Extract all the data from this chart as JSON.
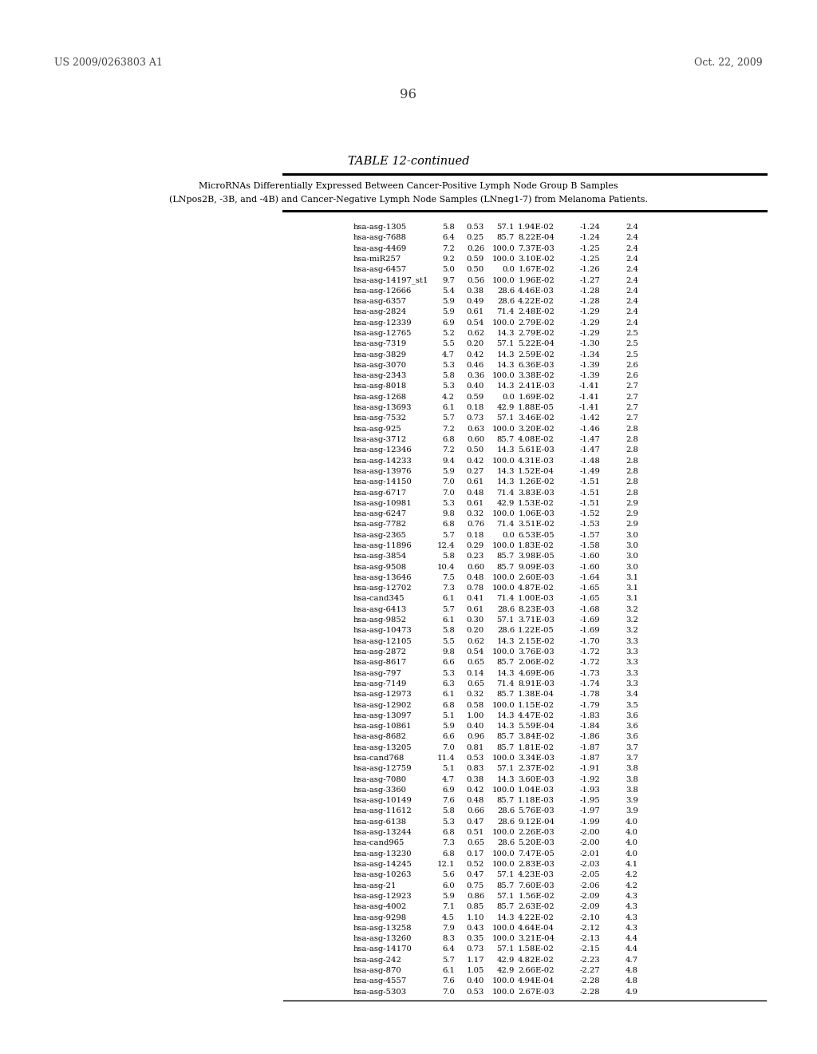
{
  "header_left": "US 2009/0263803 A1",
  "header_right": "Oct. 22, 2009",
  "page_number": "96",
  "table_title": "TABLE 12-continued",
  "subtitle_line1": "MicroRNAs Differentially Expressed Between Cancer-Positive Lymph Node Group B Samples",
  "subtitle_line2": "(LNpos2B, -3B, and -4B) and Cancer-Negative Lymph Node Samples (LNneg1-7) from Melanoma Patients.",
  "rows": [
    [
      "hsa-asg-1305",
      "5.8",
      "0.53",
      "57.1",
      "1.94E-02",
      "-1.24",
      "2.4"
    ],
    [
      "hsa-asg-7688",
      "6.4",
      "0.25",
      "85.7",
      "8.22E-04",
      "-1.24",
      "2.4"
    ],
    [
      "hsa-asg-4469",
      "7.2",
      "0.26",
      "100.0",
      "7.37E-03",
      "-1.25",
      "2.4"
    ],
    [
      "hsa-miR257",
      "9.2",
      "0.59",
      "100.0",
      "3.10E-02",
      "-1.25",
      "2.4"
    ],
    [
      "hsa-asg-6457",
      "5.0",
      "0.50",
      "0.0",
      "1.67E-02",
      "-1.26",
      "2.4"
    ],
    [
      "hsa-asg-14197_st1",
      "9.7",
      "0.56",
      "100.0",
      "1.96E-02",
      "-1.27",
      "2.4"
    ],
    [
      "hsa-asg-12666",
      "5.4",
      "0.38",
      "28.6",
      "4.46E-03",
      "-1.28",
      "2.4"
    ],
    [
      "hsa-asg-6357",
      "5.9",
      "0.49",
      "28.6",
      "4.22E-02",
      "-1.28",
      "2.4"
    ],
    [
      "hsa-asg-2824",
      "5.9",
      "0.61",
      "71.4",
      "2.48E-02",
      "-1.29",
      "2.4"
    ],
    [
      "hsa-asg-12339",
      "6.9",
      "0.54",
      "100.0",
      "2.79E-02",
      "-1.29",
      "2.4"
    ],
    [
      "hsa-asg-12765",
      "5.2",
      "0.62",
      "14.3",
      "2.79E-02",
      "-1.29",
      "2.5"
    ],
    [
      "hsa-asg-7319",
      "5.5",
      "0.20",
      "57.1",
      "5.22E-04",
      "-1.30",
      "2.5"
    ],
    [
      "hsa-asg-3829",
      "4.7",
      "0.42",
      "14.3",
      "2.59E-02",
      "-1.34",
      "2.5"
    ],
    [
      "hsa-asg-3070",
      "5.3",
      "0.46",
      "14.3",
      "6.36E-03",
      "-1.39",
      "2.6"
    ],
    [
      "hsa-asg-2343",
      "5.8",
      "0.36",
      "100.0",
      "3.38E-02",
      "-1.39",
      "2.6"
    ],
    [
      "hsa-asg-8018",
      "5.3",
      "0.40",
      "14.3",
      "2.41E-03",
      "-1.41",
      "2.7"
    ],
    [
      "hsa-asg-1268",
      "4.2",
      "0.59",
      "0.0",
      "1.69E-02",
      "-1.41",
      "2.7"
    ],
    [
      "hsa-asg-13693",
      "6.1",
      "0.18",
      "42.9",
      "1.88E-05",
      "-1.41",
      "2.7"
    ],
    [
      "hsa-asg-7532",
      "5.7",
      "0.73",
      "57.1",
      "3.46E-02",
      "-1.42",
      "2.7"
    ],
    [
      "hsa-asg-925",
      "7.2",
      "0.63",
      "100.0",
      "3.20E-02",
      "-1.46",
      "2.8"
    ],
    [
      "hsa-asg-3712",
      "6.8",
      "0.60",
      "85.7",
      "4.08E-02",
      "-1.47",
      "2.8"
    ],
    [
      "hsa-asg-12346",
      "7.2",
      "0.50",
      "14.3",
      "5.61E-03",
      "-1.47",
      "2.8"
    ],
    [
      "hsa-asg-14233",
      "9.4",
      "0.42",
      "100.0",
      "4.31E-03",
      "-1.48",
      "2.8"
    ],
    [
      "hsa-asg-13976",
      "5.9",
      "0.27",
      "14.3",
      "1.52E-04",
      "-1.49",
      "2.8"
    ],
    [
      "hsa-asg-14150",
      "7.0",
      "0.61",
      "14.3",
      "1.26E-02",
      "-1.51",
      "2.8"
    ],
    [
      "hsa-asg-6717",
      "7.0",
      "0.48",
      "71.4",
      "3.83E-03",
      "-1.51",
      "2.8"
    ],
    [
      "hsa-asg-10981",
      "5.3",
      "0.61",
      "42.9",
      "1.53E-02",
      "-1.51",
      "2.9"
    ],
    [
      "hsa-asg-6247",
      "9.8",
      "0.32",
      "100.0",
      "1.06E-03",
      "-1.52",
      "2.9"
    ],
    [
      "hsa-asg-7782",
      "6.8",
      "0.76",
      "71.4",
      "3.51E-02",
      "-1.53",
      "2.9"
    ],
    [
      "hsa-asg-2365",
      "5.7",
      "0.18",
      "0.0",
      "6.53E-05",
      "-1.57",
      "3.0"
    ],
    [
      "hsa-asg-11896",
      "12.4",
      "0.29",
      "100.0",
      "1.83E-02",
      "-1.58",
      "3.0"
    ],
    [
      "hsa-asg-3854",
      "5.8",
      "0.23",
      "85.7",
      "3.98E-05",
      "-1.60",
      "3.0"
    ],
    [
      "hsa-asg-9508",
      "10.4",
      "0.60",
      "85.7",
      "9.09E-03",
      "-1.60",
      "3.0"
    ],
    [
      "hsa-asg-13646",
      "7.5",
      "0.48",
      "100.0",
      "2.60E-03",
      "-1.64",
      "3.1"
    ],
    [
      "hsa-asg-12702",
      "7.3",
      "0.78",
      "100.0",
      "4.87E-02",
      "-1.65",
      "3.1"
    ],
    [
      "hsa-cand345",
      "6.1",
      "0.41",
      "71.4",
      "1.00E-03",
      "-1.65",
      "3.1"
    ],
    [
      "hsa-asg-6413",
      "5.7",
      "0.61",
      "28.6",
      "8.23E-03",
      "-1.68",
      "3.2"
    ],
    [
      "hsa-asg-9852",
      "6.1",
      "0.30",
      "57.1",
      "3.71E-03",
      "-1.69",
      "3.2"
    ],
    [
      "hsa-asg-10473",
      "5.8",
      "0.20",
      "28.6",
      "1.22E-05",
      "-1.69",
      "3.2"
    ],
    [
      "hsa-asg-12105",
      "5.5",
      "0.62",
      "14.3",
      "2.15E-02",
      "-1.70",
      "3.3"
    ],
    [
      "hsa-asg-2872",
      "9.8",
      "0.54",
      "100.0",
      "3.76E-03",
      "-1.72",
      "3.3"
    ],
    [
      "hsa-asg-8617",
      "6.6",
      "0.65",
      "85.7",
      "2.06E-02",
      "-1.72",
      "3.3"
    ],
    [
      "hsa-asg-797",
      "5.3",
      "0.14",
      "14.3",
      "4.69E-06",
      "-1.73",
      "3.3"
    ],
    [
      "hsa-asg-7149",
      "6.3",
      "0.65",
      "71.4",
      "8.91E-03",
      "-1.74",
      "3.3"
    ],
    [
      "hsa-asg-12973",
      "6.1",
      "0.32",
      "85.7",
      "1.38E-04",
      "-1.78",
      "3.4"
    ],
    [
      "hsa-asg-12902",
      "6.8",
      "0.58",
      "100.0",
      "1.15E-02",
      "-1.79",
      "3.5"
    ],
    [
      "hsa-asg-13097",
      "5.1",
      "1.00",
      "14.3",
      "4.47E-02",
      "-1.83",
      "3.6"
    ],
    [
      "hsa-asg-10861",
      "5.9",
      "0.40",
      "14.3",
      "5.59E-04",
      "-1.84",
      "3.6"
    ],
    [
      "hsa-asg-8682",
      "6.6",
      "0.96",
      "85.7",
      "3.84E-02",
      "-1.86",
      "3.6"
    ],
    [
      "hsa-asg-13205",
      "7.0",
      "0.81",
      "85.7",
      "1.81E-02",
      "-1.87",
      "3.7"
    ],
    [
      "hsa-cand768",
      "11.4",
      "0.53",
      "100.0",
      "3.34E-03",
      "-1.87",
      "3.7"
    ],
    [
      "hsa-asg-12759",
      "5.1",
      "0.83",
      "57.1",
      "2.37E-02",
      "-1.91",
      "3.8"
    ],
    [
      "hsa-asg-7080",
      "4.7",
      "0.38",
      "14.3",
      "3.60E-03",
      "-1.92",
      "3.8"
    ],
    [
      "hsa-asg-3360",
      "6.9",
      "0.42",
      "100.0",
      "1.04E-03",
      "-1.93",
      "3.8"
    ],
    [
      "hsa-asg-10149",
      "7.6",
      "0.48",
      "85.7",
      "1.18E-03",
      "-1.95",
      "3.9"
    ],
    [
      "hsa-asg-11612",
      "5.8",
      "0.66",
      "28.6",
      "5.76E-03",
      "-1.97",
      "3.9"
    ],
    [
      "hsa-asg-6138",
      "5.3",
      "0.47",
      "28.6",
      "9.12E-04",
      "-1.99",
      "4.0"
    ],
    [
      "hsa-asg-13244",
      "6.8",
      "0.51",
      "100.0",
      "2.26E-03",
      "-2.00",
      "4.0"
    ],
    [
      "hsa-cand965",
      "7.3",
      "0.65",
      "28.6",
      "5.20E-03",
      "-2.00",
      "4.0"
    ],
    [
      "hsa-asg-13230",
      "6.8",
      "0.17",
      "100.0",
      "7.47E-05",
      "-2.01",
      "4.0"
    ],
    [
      "hsa-asg-14245",
      "12.1",
      "0.52",
      "100.0",
      "2.83E-03",
      "-2.03",
      "4.1"
    ],
    [
      "hsa-asg-10263",
      "5.6",
      "0.47",
      "57.1",
      "4.23E-03",
      "-2.05",
      "4.2"
    ],
    [
      "hsa-asg-21",
      "6.0",
      "0.75",
      "85.7",
      "7.60E-03",
      "-2.06",
      "4.2"
    ],
    [
      "hsa-asg-12923",
      "5.9",
      "0.86",
      "57.1",
      "1.56E-02",
      "-2.09",
      "4.3"
    ],
    [
      "hsa-asg-4002",
      "7.1",
      "0.85",
      "85.7",
      "2.63E-02",
      "-2.09",
      "4.3"
    ],
    [
      "hsa-asg-9298",
      "4.5",
      "1.10",
      "14.3",
      "4.22E-02",
      "-2.10",
      "4.3"
    ],
    [
      "hsa-asg-13258",
      "7.9",
      "0.43",
      "100.0",
      "4.64E-04",
      "-2.12",
      "4.3"
    ],
    [
      "hsa-asg-13260",
      "8.3",
      "0.35",
      "100.0",
      "3.21E-04",
      "-2.13",
      "4.4"
    ],
    [
      "hsa-asg-14170",
      "6.4",
      "0.73",
      "57.1",
      "1.58E-02",
      "-2.15",
      "4.4"
    ],
    [
      "hsa-asg-242",
      "5.7",
      "1.17",
      "42.9",
      "4.82E-02",
      "-2.23",
      "4.7"
    ],
    [
      "hsa-asg-870",
      "6.1",
      "1.05",
      "42.9",
      "2.66E-02",
      "-2.27",
      "4.8"
    ],
    [
      "hsa-asg-4557",
      "7.6",
      "0.40",
      "100.0",
      "4.94E-04",
      "-2.28",
      "4.8"
    ],
    [
      "hsa-asg-5303",
      "7.0",
      "0.53",
      "100.0",
      "2.67E-03",
      "-2.28",
      "4.9"
    ]
  ]
}
